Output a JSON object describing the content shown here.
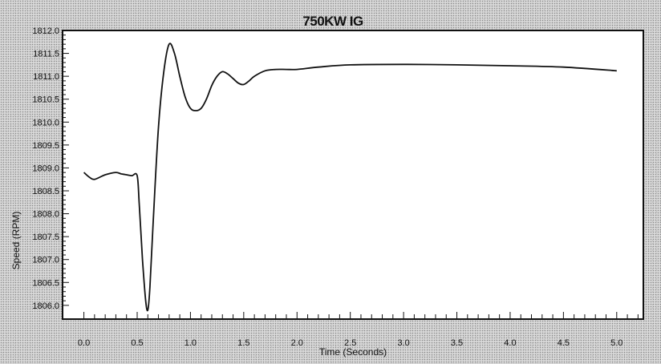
{
  "chart_data": {
    "type": "line",
    "title": "750KW IG",
    "xlabel": "Time (Seconds)",
    "ylabel": "Speed (RPM)",
    "xlim": [
      -0.2,
      5.25
    ],
    "ylim": [
      1805.7,
      1812.0
    ],
    "grid": false,
    "x_ticks": [
      "0.0",
      "0.5",
      "1.0",
      "1.5",
      "2.0",
      "2.5",
      "3.0",
      "3.5",
      "4.0",
      "4.5",
      "5.0"
    ],
    "y_ticks": [
      "1812.0",
      "1811.5",
      "1811.0",
      "1810.5",
      "1810.0",
      "1809.5",
      "1809.0",
      "1808.5",
      "1808.0",
      "1807.5",
      "1807.0",
      "1806.5",
      "1806.0"
    ],
    "series": [
      {
        "color": "#111111",
        "x": [
          0.0,
          0.05,
          0.1,
          0.2,
          0.3,
          0.35,
          0.4,
          0.45,
          0.5,
          0.52,
          0.55,
          0.58,
          0.6,
          0.62,
          0.65,
          0.7,
          0.75,
          0.8,
          0.85,
          0.9,
          0.95,
          1.0,
          1.05,
          1.1,
          1.15,
          1.2,
          1.25,
          1.3,
          1.35,
          1.4,
          1.45,
          1.5,
          1.55,
          1.6,
          1.7,
          1.8,
          1.9,
          2.0,
          2.2,
          2.5,
          3.0,
          3.5,
          4.0,
          4.5,
          5.0
        ],
        "y": [
          1808.9,
          1808.8,
          1808.75,
          1808.85,
          1808.9,
          1808.87,
          1808.85,
          1808.83,
          1808.83,
          1808.2,
          1807.0,
          1806.1,
          1805.9,
          1806.4,
          1807.8,
          1809.9,
          1811.1,
          1811.7,
          1811.5,
          1811.0,
          1810.55,
          1810.3,
          1810.25,
          1810.3,
          1810.5,
          1810.8,
          1811.0,
          1811.1,
          1811.05,
          1810.95,
          1810.85,
          1810.82,
          1810.9,
          1811.0,
          1811.12,
          1811.15,
          1811.15,
          1811.15,
          1811.2,
          1811.25,
          1811.26,
          1811.25,
          1811.23,
          1811.2,
          1811.12
        ]
      }
    ]
  }
}
